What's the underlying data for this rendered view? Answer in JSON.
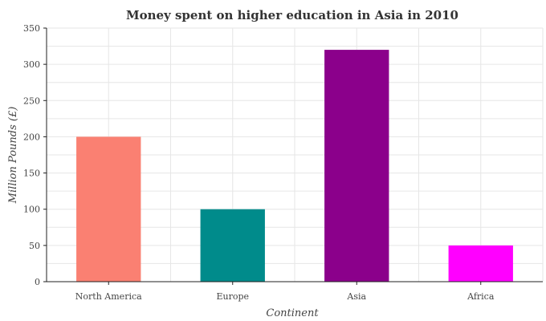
{
  "chart_data": {
    "type": "bar",
    "title": "Money spent on higher education in Asia in 2010",
    "xlabel": "Continent",
    "ylabel": "Million Pounds (£)",
    "categories": [
      "North America",
      "Europe",
      "Asia",
      "Africa"
    ],
    "values": [
      200,
      100,
      320,
      50
    ],
    "colors": [
      "#fa8072",
      "#008b8b",
      "#8b008b",
      "#ff00ff"
    ],
    "ylim": [
      0,
      350
    ],
    "yticks": [
      0,
      50,
      100,
      150,
      200,
      250,
      300,
      350
    ],
    "grid": true,
    "legend": "none"
  }
}
